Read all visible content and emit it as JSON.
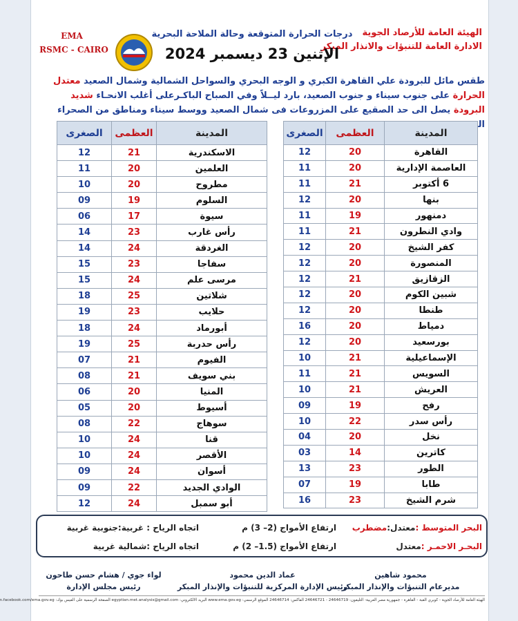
{
  "header": {
    "org_lines": [
      "الهيئة العامة للأرصاد الجوية",
      "الادارة العامة للتنبؤات والانذار المبكر"
    ],
    "title": "درجات الحرارة المتوقعة وحالة الملاحة البحرية",
    "date": "الإثنين 23 ديسمبر 2024",
    "ema": "EMA",
    "rsmc": "RSMC - CAIRO"
  },
  "paragraph": [
    "طقس مائل للبرودة علي القاهرة الكبري و الوجه البحري والسواحل الشمالية وشمال الصعيد",
    "معتدل الحرارة",
    "على جنوب سيناء و جنوب الصعيد، بارد ليــلاً وفي الصباح الباكـرعلى أغلب الانحـاء",
    "شديد البرودة",
    "يصل الى حد الصقيع على المزروعات فى شمال الصعيد ووسط سيناء ومناطق من الصحراء الغربية."
  ],
  "tables": [
    {
      "headers": [
        "المدينة",
        "العظمى",
        "الصغرى"
      ],
      "rows": [
        [
          "القاهرة",
          "20",
          "12"
        ],
        [
          "العاصمة الإدارية",
          "20",
          "11"
        ],
        [
          "6 أكتوبر",
          "21",
          "11"
        ],
        [
          "بنها",
          "20",
          "12"
        ],
        [
          "دمنهور",
          "19",
          "11"
        ],
        [
          "وادي النطرون",
          "21",
          "11"
        ],
        [
          "كفر الشيخ",
          "20",
          "12"
        ],
        [
          "المنصورة",
          "20",
          "12"
        ],
        [
          "الزقازيق",
          "21",
          "12"
        ],
        [
          "شبين الكوم",
          "20",
          "12"
        ],
        [
          "طنطا",
          "20",
          "12"
        ],
        [
          "دمياط",
          "20",
          "16"
        ],
        [
          "بورسعيد",
          "20",
          "12"
        ],
        [
          "الإسماعيلية",
          "21",
          "10"
        ],
        [
          "السويس",
          "21",
          "11"
        ],
        [
          "العريش",
          "21",
          "10"
        ],
        [
          "رفح",
          "19",
          "09"
        ],
        [
          "رأس سدر",
          "22",
          "10"
        ],
        [
          "نخل",
          "20",
          "04"
        ],
        [
          "كاترين",
          "14",
          "03"
        ],
        [
          "الطور",
          "23",
          "13"
        ],
        [
          "طابا",
          "19",
          "07"
        ],
        [
          "شرم الشيخ",
          "23",
          "16"
        ]
      ]
    },
    {
      "headers": [
        "المدينة",
        "العظمى",
        "الصغرى"
      ],
      "rows": [
        [
          "الاسكندرية",
          "21",
          "12"
        ],
        [
          "العلمين",
          "20",
          "11"
        ],
        [
          "مطروح",
          "20",
          "10"
        ],
        [
          "السلوم",
          "19",
          "09"
        ],
        [
          "سيوة",
          "17",
          "06"
        ],
        [
          "رأس غارب",
          "23",
          "14"
        ],
        [
          "الغردقة",
          "24",
          "14"
        ],
        [
          "سفاجا",
          "23",
          "15"
        ],
        [
          "مرسى علم",
          "24",
          "15"
        ],
        [
          "شلاتين",
          "25",
          "18"
        ],
        [
          "حلايب",
          "23",
          "19"
        ],
        [
          "أبورماد",
          "24",
          "18"
        ],
        [
          "رأس حدربة",
          "25",
          "19"
        ],
        [
          "الفيوم",
          "21",
          "07"
        ],
        [
          "بني سويف",
          "21",
          "08"
        ],
        [
          "المنيا",
          "20",
          "06"
        ],
        [
          "أسيوط",
          "20",
          "05"
        ],
        [
          "سوهاج",
          "22",
          "08"
        ],
        [
          "قنا",
          "24",
          "10"
        ],
        [
          "الأقصر",
          "24",
          "10"
        ],
        [
          "أسوان",
          "24",
          "09"
        ],
        [
          "الوادي الجديد",
          "22",
          "09"
        ],
        [
          "أبو سمبل",
          "24",
          "12"
        ]
      ]
    }
  ],
  "marine": [
    {
      "sea": "البحر المتوسط :",
      "state": [
        "معتدل:",
        "مضطرب"
      ],
      "waves": "ارتفاع الأمواج (2– 3) م",
      "wind": "اتجاه الرياح : غربية:جنوبية غربية"
    },
    {
      "sea": "البحـر الاحمـر :",
      "state": [
        "معتدل"
      ],
      "waves": "ارتفاع الأمواج (1.5– 2) م",
      "wind": "اتجاه الرياح :شمالية غربية"
    }
  ],
  "signatures": [
    {
      "name": "محمود شاهين",
      "role": "مديرعام التنبؤات والإنذار المبكر"
    },
    {
      "name": "عماد الدين محمود",
      "role": "رئيس الإدارة المركزية للتنبؤات والإنذار المبكر"
    },
    {
      "name": "لواء جوي / هشام حسن طاحون",
      "role": "رئيس مجلس الإدارة"
    }
  ],
  "footer": "الهيئة العامة للأرصاد الجوية - كوبري القبة - القاهرة - جمهورية مصر العربية- التليفون: 24646719 - 24646721 الفاكس: 24646714 الموقع الرسمي: www.ema.gov.eg البريد الالكتروني: egyptian.met.analysis@gmail.com الصفحة الرسمية على الفيس بوك: https://m.facebook.com/ema.gov.eg"
}
